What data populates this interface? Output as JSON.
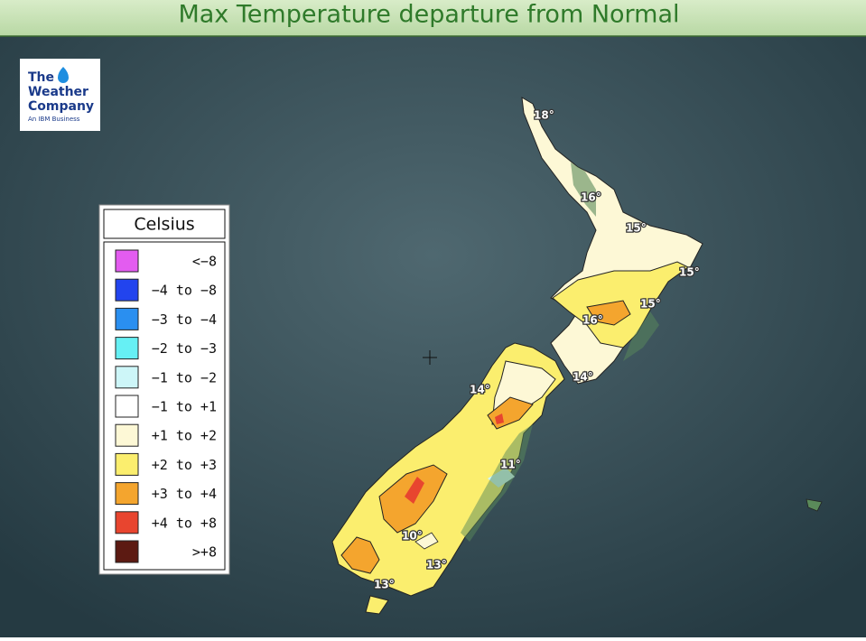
{
  "header": {
    "title": "Max Temperature departure from Normal"
  },
  "logo": {
    "lines": [
      "The",
      "Weather",
      "Company"
    ],
    "tagline": "An IBM Business"
  },
  "legend": {
    "title": "Celsius",
    "items": [
      {
        "label": "<−8",
        "color": "#e35cf0"
      },
      {
        "label": "−4 to −8",
        "color": "#2244ee"
      },
      {
        "label": "−3 to −4",
        "color": "#2a8ff0"
      },
      {
        "label": "−2 to −3",
        "color": "#66f0f4"
      },
      {
        "label": "−1 to −2",
        "color": "#cdf6f8"
      },
      {
        "label": "−1 to +1",
        "color": "#ffffff"
      },
      {
        "label": "+1 to +2",
        "color": "#fdf8d6"
      },
      {
        "label": "+2 to +3",
        "color": "#fbee6e"
      },
      {
        "label": "+3 to +4",
        "color": "#f4a52e"
      },
      {
        "label": "+4 to +8",
        "color": "#e8452f"
      },
      {
        "label": ">+8",
        "color": "#5c1a12"
      }
    ]
  },
  "map": {
    "labels": [
      "18°",
      "16°",
      "15°",
      "15°",
      "15°",
      "16°",
      "14°",
      "14°",
      "11°",
      "10°",
      "13°",
      "13°"
    ]
  }
}
